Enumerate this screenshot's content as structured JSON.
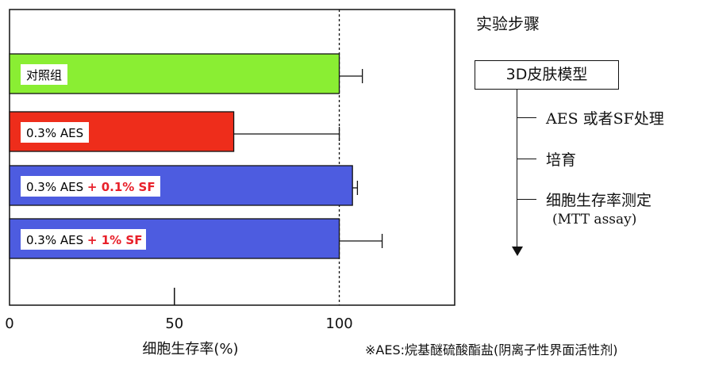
{
  "chart_data": {
    "type": "bar",
    "orientation": "horizontal",
    "xlabel": "细胞生存率(%)",
    "xlim": [
      0,
      135
    ],
    "xticks": [
      "0",
      "50",
      "100"
    ],
    "reference_line": 100,
    "bars": [
      {
        "label": "对照组",
        "value": 100,
        "error": 7,
        "color": "#8aee33",
        "label_parts": [
          {
            "text": "对照组",
            "color": "#000000"
          }
        ]
      },
      {
        "label": "0.3% AES",
        "value": 68,
        "error": 32,
        "color": "#ee2d1b",
        "label_parts": [
          {
            "text": "0.3% AES",
            "color": "#000000"
          }
        ]
      },
      {
        "label": "0.3% AES + 0.1% SF",
        "value": 104,
        "error": 1.5,
        "color": "#4d5ce0",
        "label_parts": [
          {
            "text": "0.3% AES ",
            "color": "#000000"
          },
          {
            "text": "+ 0.1% SF",
            "color": "#e8202a"
          }
        ]
      },
      {
        "label": "0.3% AES + 1% SF",
        "value": 100,
        "error": 13,
        "color": "#4d5ce0",
        "label_parts": [
          {
            "text": "0.3% AES ",
            "color": "#000000"
          },
          {
            "text": "+ 1% SF",
            "color": "#e8202a"
          }
        ]
      }
    ]
  },
  "procedure": {
    "title": "实验步骤",
    "start": "3D皮肤模型",
    "steps": [
      {
        "text": "AES 或者SF处理"
      },
      {
        "text": "培育"
      },
      {
        "text": "细胞生存率测定"
      }
    ],
    "step3_sub": "(MTT assay)"
  },
  "footnote": "※AES:烷基醚硫酸酯盐(阴离子性界面活性剂)"
}
